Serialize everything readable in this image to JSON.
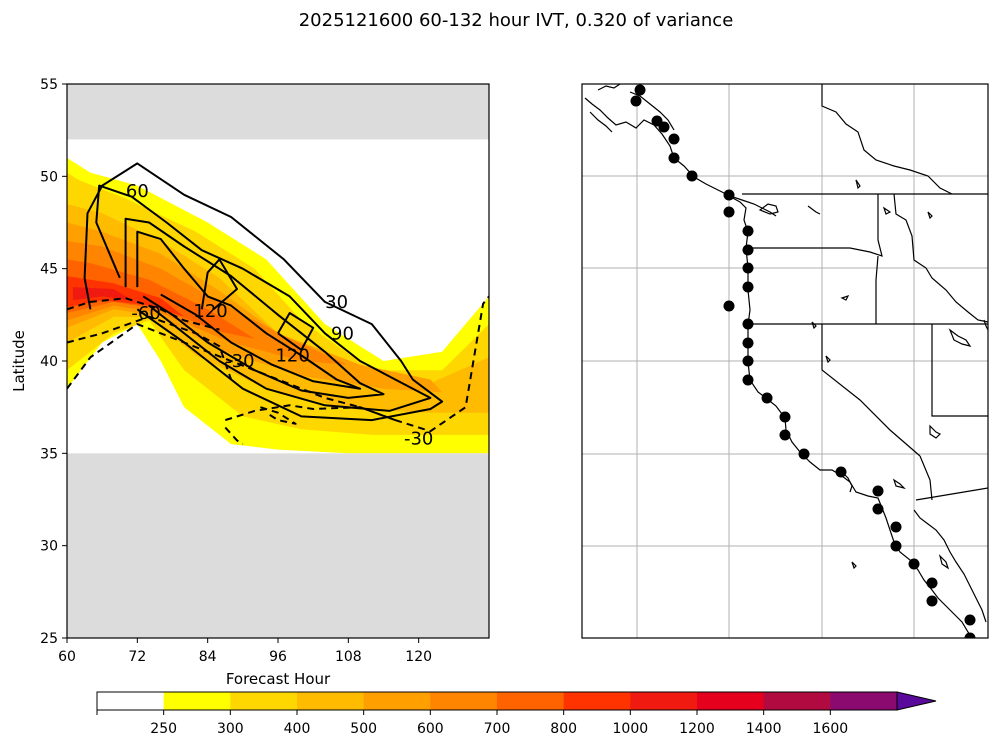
{
  "title": "2025121600 60-132 hour IVT, 0.320 of variance",
  "chart_data": [
    {
      "type": "contour",
      "xlabel": "Forecast Hour",
      "ylabel": "Latitude",
      "xlim": [
        60,
        132
      ],
      "ylim": [
        25,
        55
      ],
      "xticks": [
        60,
        72,
        84,
        96,
        108,
        120
      ],
      "yticks": [
        25,
        30,
        35,
        40,
        45,
        50,
        55
      ],
      "masked_lat_ranges": [
        [
          25,
          35
        ],
        [
          52,
          55
        ]
      ],
      "filled_regions": [
        {
          "level": 250,
          "color": "#ffff00",
          "points": [
            [
              60,
              51
            ],
            [
              60,
              38.5
            ],
            [
              66,
              41
            ],
            [
              72,
              42
            ],
            [
              76,
              40
            ],
            [
              80,
              37.5
            ],
            [
              88,
              35.5
            ],
            [
              96,
              35.2
            ],
            [
              108,
              35
            ],
            [
              120,
              35
            ],
            [
              132,
              35
            ],
            [
              132,
              43.5
            ],
            [
              124,
              40.5
            ],
            [
              114,
              40
            ],
            [
              104,
              42
            ],
            [
              94,
              45.5
            ],
            [
              84,
              47.5
            ],
            [
              72,
              49.5
            ],
            [
              64,
              50.2
            ]
          ]
        },
        {
          "level": 300,
          "color": "#ffd700",
          "points": [
            [
              60,
              50.2
            ],
            [
              60,
              39.5
            ],
            [
              68,
              41.5
            ],
            [
              74,
              42.2
            ],
            [
              80,
              39.5
            ],
            [
              90,
              37
            ],
            [
              100,
              36.3
            ],
            [
              112,
              36
            ],
            [
              124,
              36
            ],
            [
              132,
              36
            ],
            [
              132,
              42
            ],
            [
              124,
              39.5
            ],
            [
              112,
              39.5
            ],
            [
              100,
              42.2
            ],
            [
              92,
              45
            ],
            [
              82,
              47
            ],
            [
              70,
              48.8
            ],
            [
              62,
              49.8
            ]
          ]
        },
        {
          "level": 400,
          "color": "#ffbb00",
          "points": [
            [
              60,
              48.5
            ],
            [
              60,
              41
            ],
            [
              68,
              42.4
            ],
            [
              74,
              42.4
            ],
            [
              82,
              40.3
            ],
            [
              94,
              38.5
            ],
            [
              108,
              37.4
            ],
            [
              122,
              37.2
            ],
            [
              132,
              37.2
            ],
            [
              132,
              40.2
            ],
            [
              122,
              38.8
            ],
            [
              108,
              39.6
            ],
            [
              96,
              41.5
            ],
            [
              86,
              44.5
            ],
            [
              76,
              46.5
            ],
            [
              66,
              48
            ]
          ]
        },
        {
          "level": 500,
          "color": "#ffa000",
          "points": [
            [
              60,
              47.5
            ],
            [
              60,
              41.8
            ],
            [
              68,
              42.8
            ],
            [
              76,
              42.4
            ],
            [
              86,
              40.6
            ],
            [
              100,
              39.2
            ],
            [
              114,
              38.5
            ],
            [
              124,
              38.3
            ],
            [
              122,
              39
            ],
            [
              110,
              39.8
            ],
            [
              96,
              41.5
            ],
            [
              86,
              43.8
            ],
            [
              76,
              45.8
            ],
            [
              66,
              47
            ]
          ]
        },
        {
          "level": 600,
          "color": "#ff8400",
          "points": [
            [
              60,
              46.5
            ],
            [
              60,
              42.2
            ],
            [
              68,
              43
            ],
            [
              76,
              42.6
            ],
            [
              88,
              41
            ],
            [
              100,
              40
            ],
            [
              108,
              39.8
            ],
            [
              98,
              41.2
            ],
            [
              86,
              43.2
            ],
            [
              76,
              45
            ],
            [
              66,
              46.2
            ]
          ]
        },
        {
          "level": 700,
          "color": "#ff6300",
          "points": [
            [
              60,
              45.5
            ],
            [
              60,
              42.6
            ],
            [
              68,
              43.2
            ],
            [
              76,
              42.8
            ],
            [
              86,
              41.6
            ],
            [
              92,
              41.2
            ],
            [
              84,
              42.8
            ],
            [
              74,
              44.4
            ],
            [
              64,
              45.3
            ]
          ]
        },
        {
          "level": 800,
          "color": "#ff3300",
          "points": [
            [
              60,
              44.6
            ],
            [
              60,
              42.9
            ],
            [
              66,
              43.3
            ],
            [
              74,
              43
            ],
            [
              80,
              42.4
            ],
            [
              76,
              43.4
            ],
            [
              68,
              44.2
            ]
          ]
        },
        {
          "level": 1000,
          "color": "#f01a10",
          "points": [
            [
              61,
              44
            ],
            [
              61,
              43.3
            ],
            [
              66,
              43.5
            ],
            [
              71,
              43.3
            ],
            [
              68,
              43.9
            ]
          ]
        }
      ],
      "contours": [
        {
          "level": 60,
          "style": "solid",
          "label": "60",
          "points": [
            [
              69,
              44.5
            ],
            [
              65,
              47.5
            ],
            [
              65.5,
              49.5
            ],
            [
              71,
              48.9
            ],
            [
              77,
              47.5
            ],
            [
              83,
              46
            ],
            [
              90,
              45
            ],
            [
              98,
              43.5
            ],
            [
              104,
              41.5
            ],
            [
              110,
              40
            ],
            [
              116,
              39
            ],
            [
              122,
              38
            ],
            [
              115,
              37.3
            ],
            [
              104,
              37.6
            ],
            [
              94,
              38.5
            ],
            [
              86,
              40
            ],
            [
              80,
              41.5
            ],
            [
              74,
              43
            ]
          ]
        },
        {
          "level": 30,
          "style": "solid",
          "label": "30",
          "points": [
            [
              64,
              42.8
            ],
            [
              63,
              44.5
            ],
            [
              63.5,
              48
            ],
            [
              66,
              49.5
            ],
            [
              72,
              50.7
            ],
            [
              80,
              49
            ],
            [
              88,
              47.8
            ],
            [
              97,
              45.5
            ],
            [
              104,
              43.2
            ],
            [
              112,
              42
            ],
            [
              117,
              40
            ],
            [
              119,
              39
            ],
            [
              124,
              37.8
            ],
            [
              122,
              37.4
            ],
            [
              112,
              36.8
            ],
            [
              100,
              37
            ],
            [
              90,
              38.5
            ],
            [
              80,
              41
            ],
            [
              72,
              42.8
            ]
          ]
        },
        {
          "level": 90,
          "style": "solid",
          "label": "90",
          "points": [
            [
              70,
              44
            ],
            [
              70,
              47.7
            ],
            [
              74,
              47.5
            ],
            [
              80,
              46.2
            ],
            [
              88,
              44.6
            ],
            [
              96,
              42.5
            ],
            [
              104,
              40.5
            ],
            [
              110,
              38.8
            ],
            [
              114,
              38.2
            ],
            [
              108,
              38
            ],
            [
              100,
              38.4
            ],
            [
              92,
              39.5
            ],
            [
              84,
              41
            ],
            [
              78,
              42.5
            ],
            [
              73,
              43.5
            ]
          ]
        },
        {
          "level": 120,
          "style": "solid",
          "label": "120",
          "points": [
            [
              72,
              44
            ],
            [
              72,
              47
            ],
            [
              76,
              46.6
            ],
            [
              80,
              45
            ],
            [
              84,
              43.5
            ],
            [
              88,
              43
            ],
            [
              94,
              41.5
            ],
            [
              100,
              40.3
            ],
            [
              106,
              39
            ],
            [
              110,
              38.5
            ],
            [
              102,
              38.9
            ],
            [
              95,
              39.8
            ],
            [
              88,
              41
            ],
            [
              82,
              42.5
            ],
            [
              76,
              43.6
            ]
          ]
        },
        {
          "level": 120,
          "style": "solid",
          "label": "",
          "points": [
            [
              83,
              42.8
            ],
            [
              84,
              44.8
            ],
            [
              86,
              45.5
            ],
            [
              89,
              43.9
            ],
            [
              85,
              42.8
            ]
          ]
        },
        {
          "level": 120,
          "style": "solid",
          "label": "",
          "points": [
            [
              96,
              41.5
            ],
            [
              98,
              42.6
            ],
            [
              102,
              41.8
            ],
            [
              100,
              40.6
            ],
            [
              96,
              41.5
            ]
          ]
        },
        {
          "level": -30,
          "style": "dashed",
          "label": "-30",
          "points": [
            [
              60,
              38.5
            ],
            [
              64,
              40.2
            ],
            [
              72,
              42
            ],
            [
              80,
              41
            ],
            [
              88,
              40
            ],
            [
              96,
              39
            ],
            [
              104,
              38
            ],
            [
              110,
              37.5
            ],
            [
              116,
              36.8
            ],
            [
              122,
              36.2
            ],
            [
              128,
              37.5
            ],
            [
              131,
              43.1
            ],
            [
              132,
              43.5
            ]
          ]
        },
        {
          "level": -30,
          "style": "dashed",
          "label": "",
          "points": [
            [
              87,
              36.8
            ],
            [
              92,
              37.3
            ],
            [
              98,
              37.6
            ],
            [
              102,
              37.4
            ],
            [
              110,
              37.5
            ],
            [
              116,
              36.8
            ]
          ]
        },
        {
          "level": -60,
          "style": "dashed",
          "label": "-60",
          "points": [
            [
              60,
              42.8
            ],
            [
              64,
              43.2
            ],
            [
              70,
              43.4
            ],
            [
              76,
              42.8
            ],
            [
              80,
              42.2
            ],
            [
              86,
              41.7
            ]
          ]
        },
        {
          "level": -30,
          "style": "dashed",
          "label": "",
          "points": [
            [
              60,
              41
            ],
            [
              66,
              41.5
            ],
            [
              74,
              42.4
            ],
            [
              82,
              41.5
            ],
            [
              86,
              40.8
            ],
            [
              88,
              39
            ]
          ]
        },
        {
          "level": -30,
          "style": "dashed",
          "label": "",
          "points": [
            [
              93,
              37.5
            ],
            [
              96,
              37.2
            ],
            [
              99,
              36.6
            ],
            [
              96,
              36.8
            ],
            [
              94,
              37.2
            ]
          ]
        },
        {
          "level": -30,
          "style": "dashed",
          "label": "",
          "points": [
            [
              87,
              36.4
            ],
            [
              89,
              35.7
            ],
            [
              90,
              35.5
            ]
          ]
        }
      ],
      "contour_labels": [
        {
          "text": "60",
          "x": 72,
          "y": 49.2
        },
        {
          "text": "30",
          "x": 106,
          "y": 43.2
        },
        {
          "text": "90",
          "x": 107,
          "y": 41.5
        },
        {
          "text": "120",
          "x": 84.5,
          "y": 42.7
        },
        {
          "text": "120",
          "x": 98.5,
          "y": 40.3
        },
        {
          "text": "-30",
          "x": 89.5,
          "y": 40
        },
        {
          "text": "-60",
          "x": 73.5,
          "y": 42.6
        },
        {
          "text": "-30",
          "x": 120,
          "y": 35.8
        }
      ]
    },
    {
      "type": "map",
      "description_lon_lat_grid_lines": true,
      "marker_count": 32
    }
  ],
  "colorbar": {
    "levels": [
      "250",
      "300",
      "400",
      "500",
      "600",
      "700",
      "800",
      "1000",
      "1200",
      "1400",
      "1600"
    ],
    "colors": [
      "#ffffff",
      "#ffff00",
      "#ffd700",
      "#ffbb00",
      "#ffa000",
      "#ff8400",
      "#ff6300",
      "#ff3300",
      "#f01a10",
      "#e5001e",
      "#b00a40",
      "#8a0a70",
      "#5a0a9a"
    ]
  }
}
